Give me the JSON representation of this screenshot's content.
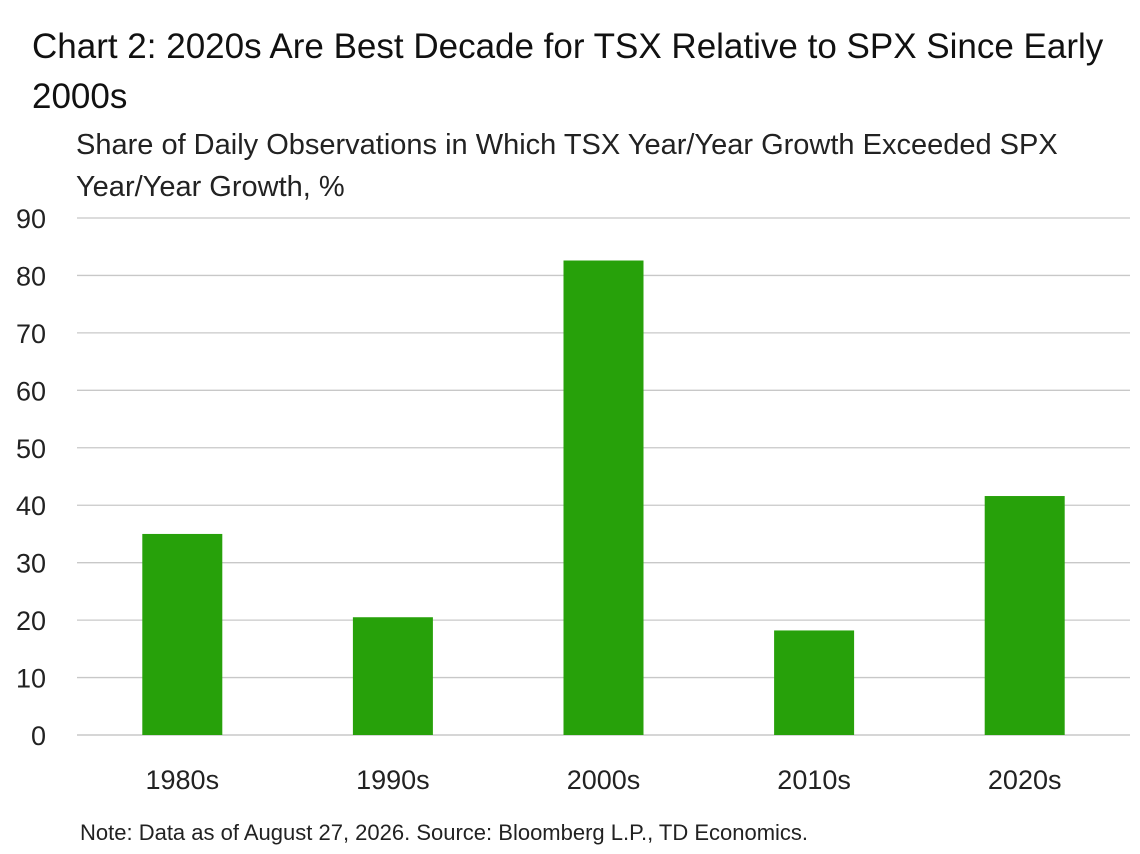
{
  "chart_data": {
    "type": "bar",
    "title": "Chart 2: 2020s Are Best Decade for TSX Relative to SPX Since Early 2000s",
    "subtitle": "Share of Daily Observations in Which TSX Year/Year Growth Exceeded SPX Year/Year Growth, %",
    "xlabel": "",
    "ylabel": "",
    "categories": [
      "1980s",
      "1990s",
      "2000s",
      "2010s",
      "2020s"
    ],
    "values": [
      35,
      20.5,
      82.6,
      18.2,
      41.6
    ],
    "ylim": [
      0,
      90
    ],
    "yticks": [
      0,
      10,
      20,
      30,
      40,
      50,
      60,
      70,
      80,
      90
    ],
    "grid": true,
    "bar_color": "#27a10a",
    "grid_color": "#c8c8c8",
    "note": "Note: Data as of August 27, 2026. Source: Bloomberg L.P., TD Economics."
  }
}
